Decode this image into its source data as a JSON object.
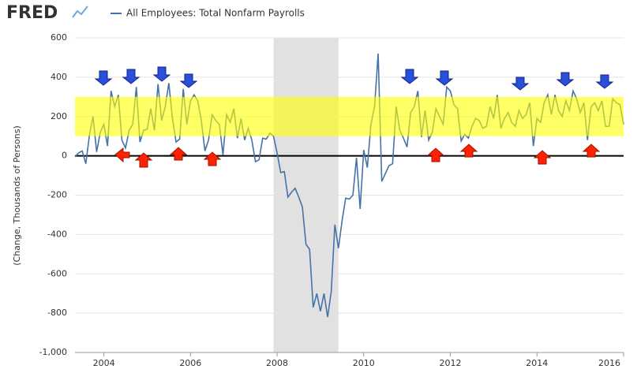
{
  "brand": "FRED",
  "chart_data": {
    "type": "line",
    "ylabel": "(Change, Thousands of Persons)",
    "x": [
      "2003-05",
      "2003-06",
      "2003-07",
      "2003-08",
      "2003-09",
      "2003-10",
      "2003-11",
      "2003-12",
      "2004-01",
      "2004-02",
      "2004-03",
      "2004-04",
      "2004-05",
      "2004-06",
      "2004-07",
      "2004-08",
      "2004-09",
      "2004-10",
      "2004-11",
      "2004-12",
      "2005-01",
      "2005-02",
      "2005-03",
      "2005-04",
      "2005-05",
      "2005-06",
      "2005-07",
      "2005-08",
      "2005-09",
      "2005-10",
      "2005-11",
      "2005-12",
      "2006-01",
      "2006-02",
      "2006-03",
      "2006-04",
      "2006-05",
      "2006-06",
      "2006-07",
      "2006-08",
      "2006-09",
      "2006-10",
      "2006-11",
      "2006-12",
      "2007-01",
      "2007-02",
      "2007-03",
      "2007-04",
      "2007-05",
      "2007-06",
      "2007-07",
      "2007-08",
      "2007-09",
      "2007-10",
      "2007-11",
      "2007-12",
      "2008-01",
      "2008-02",
      "2008-03",
      "2008-04",
      "2008-05",
      "2008-06",
      "2008-07",
      "2008-08",
      "2008-09",
      "2008-10",
      "2008-11",
      "2008-12",
      "2009-01",
      "2009-02",
      "2009-03",
      "2009-04",
      "2009-05",
      "2009-06",
      "2009-07",
      "2009-08",
      "2009-09",
      "2009-10",
      "2009-11",
      "2009-12",
      "2010-01",
      "2010-02",
      "2010-03",
      "2010-04",
      "2010-05",
      "2010-06",
      "2010-07",
      "2010-08",
      "2010-09",
      "2010-10",
      "2010-11",
      "2010-12",
      "2011-01",
      "2011-02",
      "2011-03",
      "2011-04",
      "2011-05",
      "2011-06",
      "2011-07",
      "2011-08",
      "2011-09",
      "2011-10",
      "2011-11",
      "2011-12",
      "2012-01",
      "2012-02",
      "2012-03",
      "2012-04",
      "2012-05",
      "2012-06",
      "2012-07",
      "2012-08",
      "2012-09",
      "2012-10",
      "2012-11",
      "2012-12",
      "2013-01",
      "2013-02",
      "2013-03",
      "2013-04",
      "2013-05",
      "2013-06",
      "2013-07",
      "2013-08",
      "2013-09",
      "2013-10",
      "2013-11",
      "2013-12",
      "2014-01",
      "2014-02",
      "2014-03",
      "2014-04",
      "2014-05",
      "2014-06",
      "2014-07",
      "2014-08",
      "2014-09",
      "2014-10",
      "2014-11",
      "2014-12",
      "2015-01",
      "2015-02",
      "2015-03",
      "2015-04",
      "2015-05",
      "2015-06",
      "2015-07",
      "2015-08",
      "2015-09",
      "2015-10",
      "2015-11",
      "2015-12",
      "2016-01"
    ],
    "series": [
      {
        "name": "All Employees: Total Nonfarm Payrolls",
        "color": "#4572a7",
        "values": [
          -5,
          15,
          25,
          -40,
          105,
          200,
          20,
          120,
          160,
          50,
          330,
          250,
          310,
          80,
          40,
          130,
          160,
          350,
          70,
          130,
          135,
          240,
          130,
          365,
          180,
          250,
          370,
          190,
          70,
          85,
          340,
          160,
          280,
          310,
          280,
          180,
          25,
          80,
          210,
          180,
          160,
          5,
          210,
          170,
          240,
          90,
          190,
          80,
          140,
          80,
          -30,
          -20,
          90,
          85,
          115,
          100,
          15,
          -85,
          -80,
          -210,
          -185,
          -165,
          -210,
          -260,
          -450,
          -475,
          -770,
          -700,
          -790,
          -700,
          -820,
          -690,
          -350,
          -470,
          -330,
          -215,
          -220,
          -200,
          -10,
          -270,
          30,
          -60,
          160,
          250,
          520,
          -130,
          -90,
          -50,
          -40,
          250,
          130,
          90,
          45,
          220,
          250,
          330,
          95,
          230,
          80,
          120,
          240,
          200,
          160,
          350,
          330,
          260,
          240,
          75,
          110,
          90,
          150,
          190,
          180,
          140,
          150,
          250,
          190,
          310,
          140,
          190,
          220,
          170,
          150,
          230,
          190,
          210,
          270,
          50,
          190,
          170,
          270,
          310,
          210,
          310,
          230,
          200,
          280,
          230,
          330,
          290,
          220,
          270,
          80,
          250,
          270,
          230,
          280,
          150,
          150,
          290,
          270,
          260,
          160
        ]
      }
    ],
    "xlim": [
      "2003-05",
      "2016-01"
    ],
    "xticks": [
      2004,
      2006,
      2008,
      2010,
      2012,
      2014,
      2016
    ],
    "ylim": [
      -1000,
      600
    ],
    "yticks": [
      600,
      400,
      200,
      0,
      -200,
      -400,
      -600,
      -800,
      {
        "value": -1000,
        "label": "-1,000"
      }
    ],
    "grid": true,
    "recession": [
      "2007-12",
      "2009-06"
    ],
    "highlight_band": [
      100,
      300
    ],
    "highlight_color": "#ffff00",
    "recession_color": "#e1e1e1"
  }
}
